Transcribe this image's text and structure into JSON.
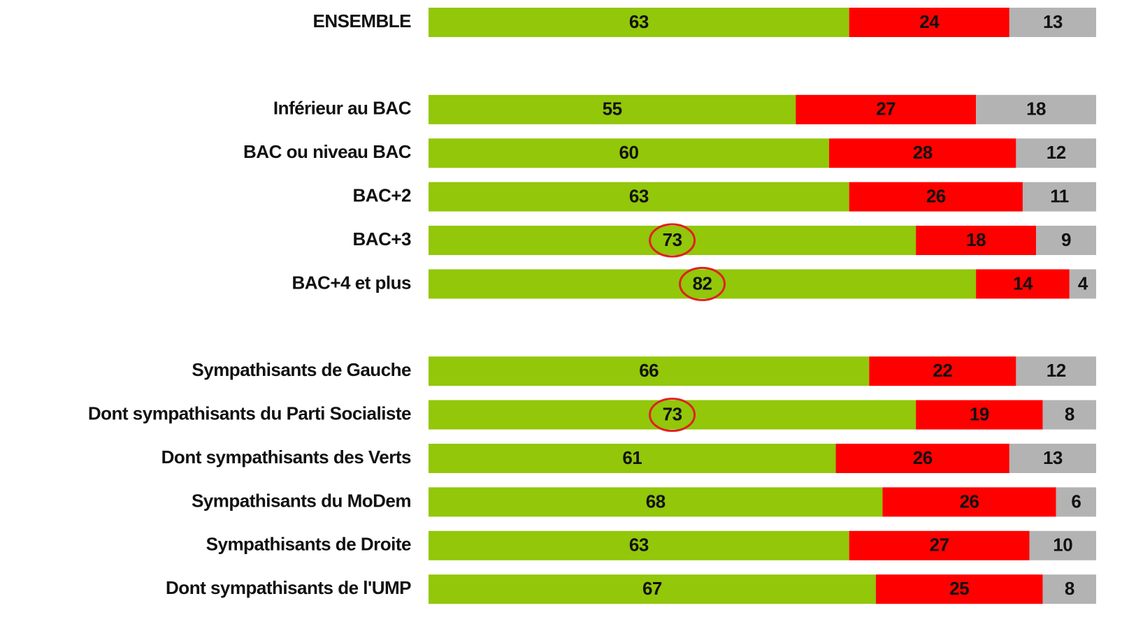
{
  "chart_data": {
    "type": "stacked-bar-horizontal",
    "categories": [
      "ENSEMBLE",
      null,
      "Inférieur au BAC",
      "BAC ou niveau BAC",
      "BAC+2",
      "BAC+3",
      "BAC+4 et plus",
      null,
      "Sympathisants de Gauche",
      "Dont sympathisants du Parti Socialiste",
      "Dont sympathisants des Verts",
      "Sympathisants du MoDem",
      "Sympathisants  de Droite",
      "Dont sympathisants de l'UMP"
    ],
    "series": [
      {
        "color": "#92c70a",
        "values": [
          63,
          null,
          55,
          60,
          63,
          73,
          82,
          null,
          66,
          73,
          61,
          68,
          63,
          67
        ],
        "circled": [
          false,
          false,
          false,
          false,
          false,
          true,
          true,
          false,
          false,
          true,
          false,
          false,
          false,
          false
        ]
      },
      {
        "color": "#ff0000",
        "values": [
          24,
          null,
          27,
          28,
          26,
          18,
          14,
          null,
          22,
          19,
          26,
          26,
          27,
          25
        ]
      },
      {
        "color": "#b3b3b3",
        "values": [
          13,
          null,
          18,
          12,
          11,
          9,
          4,
          null,
          12,
          8,
          13,
          6,
          10,
          8
        ]
      }
    ],
    "xlim": [
      0,
      100
    ],
    "highlight_color": "#e02020"
  }
}
